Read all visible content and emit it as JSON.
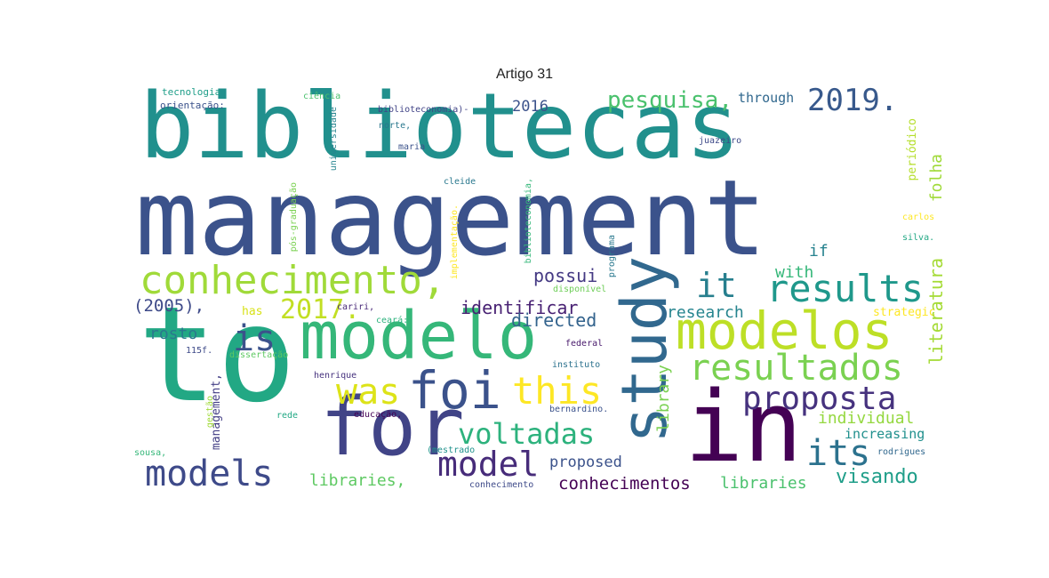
{
  "title": "Artigo 31",
  "words": [
    {
      "text": "management",
      "color": "#3b528b"
    },
    {
      "text": "bibliotecas",
      "color": "#21908d"
    },
    {
      "text": "to",
      "color": "#22a884"
    },
    {
      "text": "in",
      "color": "#440154"
    },
    {
      "text": "for",
      "color": "#414487"
    },
    {
      "text": "study",
      "color": "#31688e"
    },
    {
      "text": "modelo",
      "color": "#35b779"
    },
    {
      "text": "modelos",
      "color": "#bddf26"
    },
    {
      "text": "foi",
      "color": "#3b528b"
    },
    {
      "text": "conhecimento,",
      "color": "#a0da39"
    },
    {
      "text": "results",
      "color": "#1f988b"
    },
    {
      "text": "resultados",
      "color": "#7ad151"
    },
    {
      "text": "was",
      "color": "#dde318"
    },
    {
      "text": "this",
      "color": "#fde725"
    },
    {
      "text": "model",
      "color": "#472c7a"
    },
    {
      "text": "models",
      "color": "#3e4a89"
    },
    {
      "text": "proposta",
      "color": "#46327e"
    },
    {
      "text": "voltadas",
      "color": "#2db27d"
    },
    {
      "text": "its",
      "color": "#2c728e"
    },
    {
      "text": "it",
      "color": "#277f8e"
    },
    {
      "text": "is",
      "color": "#3b528b"
    },
    {
      "text": "2017.",
      "color": "#c2df23"
    },
    {
      "text": "2019.",
      "color": "#38598c"
    },
    {
      "text": "pesquisa,",
      "color": "#4ac16d"
    },
    {
      "text": "identificar",
      "color": "#482173"
    },
    {
      "text": "directed",
      "color": "#33638d"
    },
    {
      "text": "possui",
      "color": "#443983"
    },
    {
      "text": "research",
      "color": "#25848e"
    },
    {
      "text": "individual",
      "color": "#95d840"
    },
    {
      "text": "increasing",
      "color": "#21908d"
    },
    {
      "text": "visando",
      "color": "#1f9e89"
    },
    {
      "text": "libraries",
      "color": "#4ac16d"
    },
    {
      "text": "libraries,",
      "color": "#5ec962"
    },
    {
      "text": "conhecimentos",
      "color": "#440154"
    },
    {
      "text": "proposed",
      "color": "#3b528b"
    },
    {
      "text": "(2005),",
      "color": "#3e4a89"
    },
    {
      "text": "rosto",
      "color": "#2a788e"
    },
    {
      "text": "2016",
      "color": "#3b528b"
    },
    {
      "text": "through",
      "color": "#31688e"
    },
    {
      "text": "with",
      "color": "#35b779"
    },
    {
      "text": "if",
      "color": "#26828e"
    },
    {
      "text": "has",
      "color": "#d8e219"
    },
    {
      "text": "strategic",
      "color": "#fde725"
    },
    {
      "text": "library",
      "color": "#7ad151"
    },
    {
      "text": "literatura",
      "color": "#a5db36"
    },
    {
      "text": "folha",
      "color": "#a0da39"
    },
    {
      "text": "periódico",
      "color": "#b5de2b"
    },
    {
      "text": "management,",
      "color": "#433e85"
    },
    {
      "text": "tecnologia",
      "color": "#1f9e89"
    },
    {
      "text": "orientação:",
      "color": "#3b528b"
    },
    {
      "text": "ciência",
      "color": "#4ac16d"
    },
    {
      "text": "biblioteconomia)-",
      "color": "#414487"
    },
    {
      "text": "norte,",
      "color": "#2a788e"
    },
    {
      "text": "maria",
      "color": "#3b528b"
    },
    {
      "text": "cleide",
      "color": "#2a788e"
    },
    {
      "text": "juazeiro",
      "color": "#3e4a89"
    },
    {
      "text": "universidade",
      "color": "#25848e"
    },
    {
      "text": "pós-graduação",
      "color": "#7ad151"
    },
    {
      "text": "implementação.",
      "color": "#fde725"
    },
    {
      "text": "biblioteconomia,",
      "color": "#35b779"
    },
    {
      "text": "programa",
      "color": "#2a788e"
    },
    {
      "text": "carlos",
      "color": "#fde725"
    },
    {
      "text": "silva.",
      "color": "#22a884"
    },
    {
      "text": "disponível",
      "color": "#6ece58"
    },
    {
      "text": "cariri,",
      "color": "#482878"
    },
    {
      "text": "ceará:",
      "color": "#2db27d"
    },
    {
      "text": "115f.",
      "color": "#3e4a89"
    },
    {
      "text": "dissertação",
      "color": "#5ec962"
    },
    {
      "text": "federal",
      "color": "#481a6c"
    },
    {
      "text": "instituto",
      "color": "#2c728e"
    },
    {
      "text": "henrique",
      "color": "#46327e"
    },
    {
      "text": "gestão",
      "color": "#a0da39"
    },
    {
      "text": "rede",
      "color": "#22a884"
    },
    {
      "text": "educação,",
      "color": "#440154"
    },
    {
      "text": "bernardino.",
      "color": "#3b528b"
    },
    {
      "text": "(mestrado",
      "color": "#20928c"
    },
    {
      "text": "sousa,",
      "color": "#35b779"
    },
    {
      "text": "conhecimento",
      "color": "#3e4a89"
    },
    {
      "text": "rodrigues",
      "color": "#31688e"
    }
  ]
}
